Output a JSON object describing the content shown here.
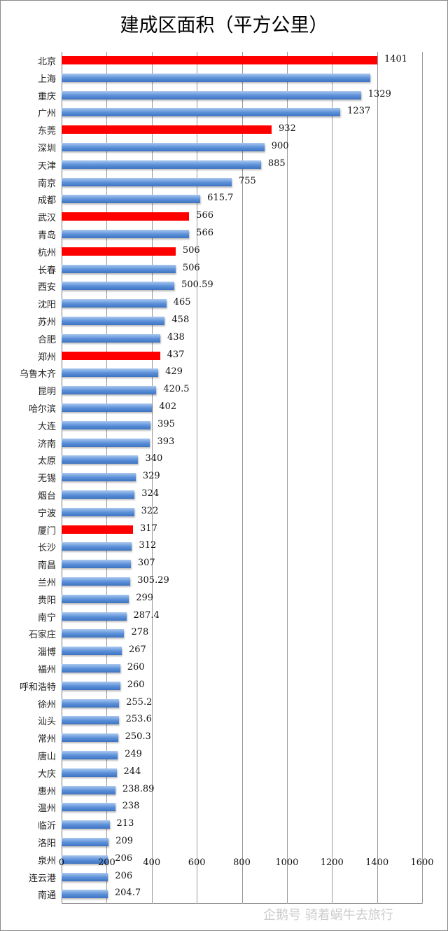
{
  "chart_data": {
    "type": "bar",
    "orientation": "horizontal",
    "title": "建成区面积（平方公里）",
    "xlim": [
      0,
      1600
    ],
    "xticks": [
      0,
      200,
      400,
      600,
      800,
      1000,
      1200,
      1400,
      1600
    ],
    "grid": true,
    "highlight_color": "#ff0000",
    "bar_color": "#5a8fd8",
    "categories": [
      "北京",
      "上海",
      "重庆",
      "广州",
      "东莞",
      "深圳",
      "天津",
      "南京",
      "成都",
      "武汉",
      "青岛",
      "杭州",
      "长春",
      "西安",
      "沈阳",
      "苏州",
      "合肥",
      "郑州",
      "乌鲁木齐",
      "昆明",
      "哈尔滨",
      "大连",
      "济南",
      "太原",
      "无锡",
      "烟台",
      "宁波",
      "厦门",
      "长沙",
      "南昌",
      "兰州",
      "贵阳",
      "南宁",
      "石家庄",
      "淄博",
      "福州",
      "呼和浩特",
      "徐州",
      "汕头",
      "常州",
      "唐山",
      "大庆",
      "惠州",
      "温州",
      "临沂",
      "洛阳",
      "泉州",
      "连云港",
      "南通"
    ],
    "values": [
      1401,
      1369,
      1329,
      1237,
      932,
      900,
      885,
      755,
      615.7,
      566,
      566,
      506,
      506,
      500.59,
      465,
      458,
      438,
      437,
      429,
      420.5,
      402,
      395,
      393,
      340,
      329,
      324,
      322,
      317,
      312,
      307,
      305.29,
      299,
      287.4,
      278,
      267,
      260,
      260,
      255.2,
      253.6,
      250.3,
      249,
      244,
      238.89,
      238,
      213,
      209,
      206,
      206,
      204.7
    ],
    "labels": [
      "1401",
      "",
      "1329",
      "1237",
      "932",
      "900",
      "885",
      "755",
      "615.7",
      "566",
      "566",
      "506",
      "506",
      "500.59",
      "465",
      "458",
      "438",
      "437",
      "429",
      "420.5",
      "402",
      "395",
      "393",
      "340",
      "329",
      "324",
      "322",
      "317",
      "312",
      "307",
      "305.29",
      "299",
      "287.4",
      "278",
      "267",
      "260",
      "260",
      "255.2",
      "253.6",
      "250.3",
      "249",
      "244",
      "238.89",
      "238",
      "213",
      "209",
      "206",
      "206",
      "204.7"
    ],
    "highlighted": [
      "北京",
      "东莞",
      "武汉",
      "杭州",
      "郑州",
      "厦门"
    ]
  },
  "watermark": "企鹅号 骑着蜗牛去旅行"
}
